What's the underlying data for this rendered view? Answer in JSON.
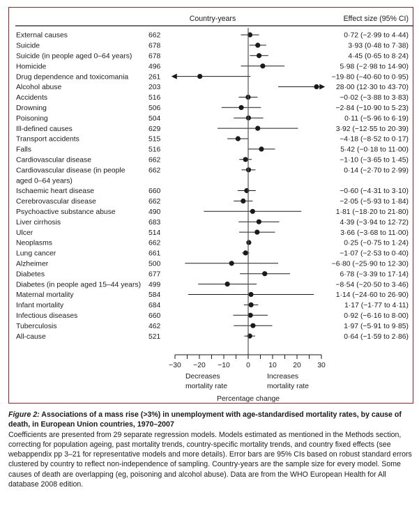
{
  "chart_data": {
    "type": "forest",
    "columns": {
      "label": "",
      "n": "Country-years",
      "effect": "Effect size (95% CI)"
    },
    "xlabel": "Percentage change",
    "xlim": [
      -30,
      30
    ],
    "xticks": [
      -30,
      -25,
      -20,
      -15,
      -10,
      -5,
      0,
      5,
      10,
      15,
      20,
      25,
      30
    ],
    "xtick_labels": [
      {
        "value": -30,
        "label": "−30"
      },
      {
        "value": -20,
        "label": "−20"
      },
      {
        "value": -10,
        "label": "−10"
      },
      {
        "value": 0,
        "label": "0"
      },
      {
        "value": 10,
        "label": "10"
      },
      {
        "value": 20,
        "label": "20"
      },
      {
        "value": 30,
        "label": "30"
      }
    ],
    "direction_labels": {
      "left": [
        "Decreases",
        "mortality rate"
      ],
      "right": [
        "Increases",
        "mortality rate"
      ]
    },
    "rows": [
      {
        "label": "External causes",
        "n": "662",
        "est": 0.72,
        "lo": -2.99,
        "hi": 4.44,
        "text": "0·72 (−2·99 to 4·44)"
      },
      {
        "label": "Suicide",
        "n": "678",
        "est": 3.93,
        "lo": 0.48,
        "hi": 7.38,
        "text": "3·93 (0·48 to 7·38)"
      },
      {
        "label": "Suicide (in people aged 0–64 years)",
        "n": "678",
        "est": 4.45,
        "lo": 0.65,
        "hi": 8.24,
        "text": "4·45 (0·65 to 8·24)"
      },
      {
        "label": "Homicide",
        "n": "496",
        "est": 5.98,
        "lo": -2.98,
        "hi": 14.9,
        "text": "5·98 (−2·98 to 14·90)"
      },
      {
        "label": "Drug dependence and toxicomania",
        "n": "261",
        "est": -19.8,
        "lo": -40.6,
        "hi": 0.95,
        "text": "−19·80 (−40·60 to 0·95)"
      },
      {
        "label": "Alcohol abuse",
        "n": "203",
        "est": 28.0,
        "lo": 12.3,
        "hi": 43.7,
        "text": "28·00 (12·30 to 43·70)"
      },
      {
        "label": "Accidents",
        "n": "516",
        "est": -0.02,
        "lo": -3.88,
        "hi": 3.83,
        "text": "−0·02 (−3·88 to 3·83)"
      },
      {
        "label": "Drowning",
        "n": "506",
        "est": -2.84,
        "lo": -10.9,
        "hi": 5.23,
        "text": "−2·84 (−10·90 to 5·23)"
      },
      {
        "label": "Poisoning",
        "n": "504",
        "est": 0.11,
        "lo": -5.96,
        "hi": 6.19,
        "text": "0·11 (−5·96 to 6·19)"
      },
      {
        "label": "Ill-defined causes",
        "n": "629",
        "est": 3.92,
        "lo": -12.55,
        "hi": 20.39,
        "text": "3·92 (−12·55 to 20·39)"
      },
      {
        "label": "Transport accidents",
        "n": "515",
        "est": -4.18,
        "lo": -8.52,
        "hi": 0.17,
        "text": "−4·18 (−8·52 to 0·17)"
      },
      {
        "label": "Falls",
        "n": "516",
        "est": 5.42,
        "lo": -0.18,
        "hi": 11.0,
        "text": "5·42 (−0·18 to 11·00)"
      },
      {
        "label": "Cardiovascular disease",
        "n": "662",
        "est": -1.1,
        "lo": -3.65,
        "hi": 1.45,
        "text": "−1·10 (−3·65 to 1·45)"
      },
      {
        "label": "Cardiovascular disease (in people",
        "label2": "aged 0–64 years)",
        "n": "662",
        "est": 0.14,
        "lo": -2.7,
        "hi": 2.99,
        "text": "0·14 (−2·70 to 2·99)"
      },
      {
        "label": "Ischaemic heart disease",
        "n": "660",
        "est": -0.6,
        "lo": -4.31,
        "hi": 3.1,
        "text": "−0·60 (−4·31 to 3·10)"
      },
      {
        "label": "Cerebrovascular disease",
        "n": "662",
        "est": -2.05,
        "lo": -5.93,
        "hi": 1.84,
        "text": "−2·05 (−5·93 to 1·84)"
      },
      {
        "label": "Psychoactive substance abuse",
        "n": "490",
        "est": 1.81,
        "lo": -18.2,
        "hi": 21.8,
        "text": "1·81 (−18·20 to 21·80)"
      },
      {
        "label": "Liver cirrhosis",
        "n": "683",
        "est": 4.39,
        "lo": -3.94,
        "hi": 12.72,
        "text": "4·39 (−3·94 to 12·72)"
      },
      {
        "label": "Ulcer",
        "n": "514",
        "est": 3.66,
        "lo": -3.68,
        "hi": 11.0,
        "text": "3·66 (−3·68 to 11·00)"
      },
      {
        "label": "Neoplasms",
        "n": "662",
        "est": 0.25,
        "lo": -0.75,
        "hi": 1.24,
        "text": "0·25 (−0·75 to 1·24)"
      },
      {
        "label": "Lung cancer",
        "n": "661",
        "est": -1.07,
        "lo": -2.53,
        "hi": 0.4,
        "text": "−1·07 (−2·53 to 0·40)"
      },
      {
        "label": "Alzheimer",
        "n": "500",
        "est": -6.8,
        "lo": -25.9,
        "hi": 12.3,
        "text": "−6·80 (−25·90 to 12·30)"
      },
      {
        "label": "Diabetes",
        "n": "677",
        "est": 6.78,
        "lo": -3.39,
        "hi": 17.14,
        "text": "6·78 (−3·39 to 17·14)"
      },
      {
        "label": "Diabetes (in people aged 15–44 years)",
        "n": "499",
        "est": -8.54,
        "lo": -20.5,
        "hi": 3.46,
        "text": "−8·54 (−20·50 to 3·46)"
      },
      {
        "label": "Maternal mortality",
        "n": "584",
        "est": 1.14,
        "lo": -24.6,
        "hi": 26.9,
        "text": "1·14 (−24·60 to 26·90)"
      },
      {
        "label": "Infant mortality",
        "n": "684",
        "est": 1.17,
        "lo": -1.77,
        "hi": 4.11,
        "text": "1·17 (−1·77 to 4·11)"
      },
      {
        "label": "Infectious diseases",
        "n": "660",
        "est": 0.92,
        "lo": -6.16,
        "hi": 8.0,
        "text": "0·92 (−6·16 to 8·00)"
      },
      {
        "label": "Tuberculosis",
        "n": "462",
        "est": 1.97,
        "lo": -5.91,
        "hi": 9.85,
        "text": "1·97 (−5·91 to 9·85)"
      },
      {
        "label": "All-cause",
        "n": "521",
        "est": 0.64,
        "lo": -1.59,
        "hi": 2.86,
        "text": "0·64 (−1·59 to 2·86)"
      }
    ]
  },
  "caption": {
    "figure_label": "Figure 2:",
    "title": "Associations of a mass rise (>3%) in unemployment with age-standardised mortality rates, by cause of death, in European Union countries, 1970–2007",
    "body": "Coefficients are presented from 29 separate regression models. Models estimated as mentioned in the Methods section, correcting for population ageing, past mortality trends, country-specific mortality trends, and country fixed effects (see webappendix pp 3–21 for representative models and more details). Error bars are 95% CIs based on robust standard errors clustered by country to reflect non-independence of sampling. Country-years are the sample size for every model. Some causes of death are overlapping (eg, poisoning and alcohol abuse). Data are from the WHO European Health for All database 2008 edition."
  },
  "colors": {
    "frame": "#a01c24",
    "ink": "#1a1a1a",
    "axis": "#555555"
  }
}
